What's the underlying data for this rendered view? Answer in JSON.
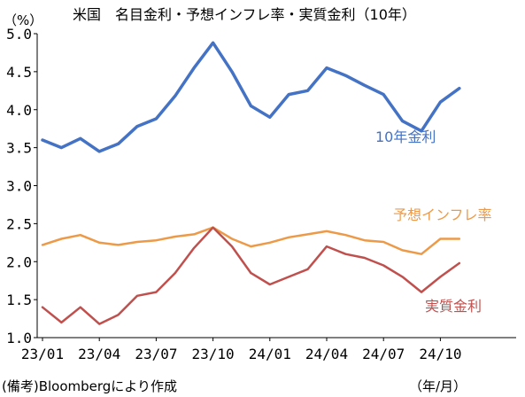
{
  "chart_data": {
    "type": "line",
    "title": "米国　名目金利・予想インフレ率・実質金利（10年）",
    "ylabel": "（%）",
    "ylim": [
      1.0,
      5.0
    ],
    "yticks": [
      "5.0",
      "4.5",
      "4.0",
      "3.5",
      "3.0",
      "2.5",
      "2.0",
      "1.5",
      "1.0"
    ],
    "xticks": [
      "23/01",
      "23/04",
      "23/07",
      "23/10",
      "24/01",
      "24/04",
      "24/07",
      "24/10"
    ],
    "x": [
      "23/01",
      "23/02",
      "23/03",
      "23/04",
      "23/05",
      "23/06",
      "23/07",
      "23/08",
      "23/09",
      "23/10",
      "23/11",
      "23/12",
      "24/01",
      "24/02",
      "24/03",
      "24/04",
      "24/05",
      "24/06",
      "24/07",
      "24/08",
      "24/09",
      "24/10",
      "24/11"
    ],
    "series": [
      {
        "name": "10年金利",
        "color": "#4472C4",
        "values": [
          3.6,
          3.5,
          3.62,
          3.45,
          3.55,
          3.78,
          3.88,
          4.18,
          4.55,
          4.88,
          4.5,
          4.05,
          3.9,
          4.2,
          4.25,
          4.55,
          4.45,
          4.32,
          4.2,
          3.85,
          3.72,
          4.1,
          4.28
        ]
      },
      {
        "name": "予想インフレ率",
        "color": "#ED9A48",
        "values": [
          2.22,
          2.3,
          2.35,
          2.25,
          2.22,
          2.26,
          2.28,
          2.33,
          2.36,
          2.45,
          2.3,
          2.2,
          2.25,
          2.32,
          2.36,
          2.4,
          2.35,
          2.28,
          2.26,
          2.15,
          2.1,
          2.3,
          2.3
        ]
      },
      {
        "name": "実質金利",
        "color": "#C0504D",
        "values": [
          1.4,
          1.2,
          1.4,
          1.18,
          1.3,
          1.55,
          1.6,
          1.85,
          2.18,
          2.45,
          2.2,
          1.85,
          1.7,
          1.8,
          1.9,
          2.2,
          2.1,
          2.05,
          1.95,
          1.8,
          1.6,
          1.8,
          1.98
        ]
      }
    ],
    "legend": "inline labels",
    "grid": false
  },
  "notes": {
    "source": "(備考)Bloombergにより作成",
    "unit": "（年/月）"
  }
}
